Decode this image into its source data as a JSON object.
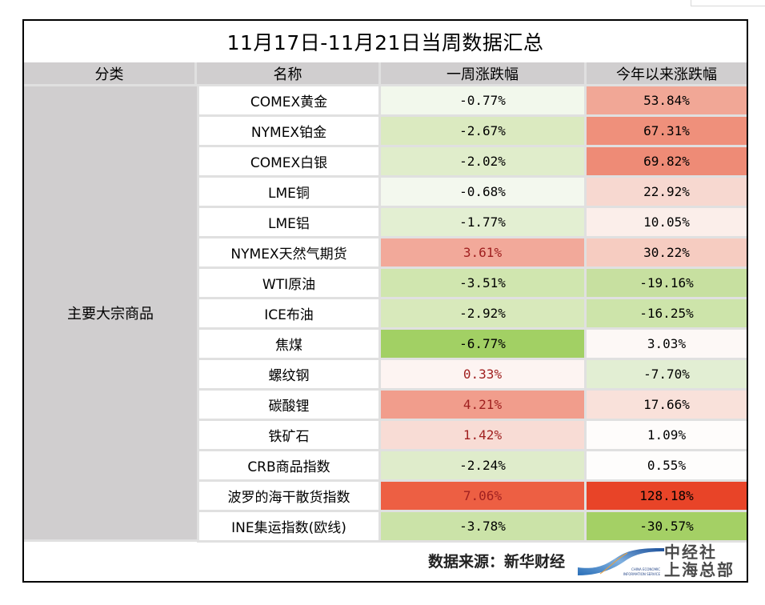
{
  "title": "11月17日-11月21日当周数据汇总",
  "headers": {
    "category": "分类",
    "name": "名称",
    "weekly": "一周涨跌幅",
    "ytd": "今年以来涨跌幅"
  },
  "category_label": "主要大宗商品",
  "rows": [
    {
      "name": "COMEX黄金",
      "weekly": "-0.77%",
      "ytd": "53.84%",
      "weekly_color": "#f2f8ec",
      "ytd_color": "#f1a796",
      "weekly_positive": false
    },
    {
      "name": "NYMEX铂金",
      "weekly": "-2.67%",
      "ytd": "67.31%",
      "weekly_color": "#dbeac0",
      "ytd_color": "#ef907b",
      "weekly_positive": false
    },
    {
      "name": "COMEX白银",
      "weekly": "-2.02%",
      "ytd": "69.82%",
      "weekly_color": "#e0edcb",
      "ytd_color": "#ee8b76",
      "weekly_positive": false
    },
    {
      "name": "LME铜",
      "weekly": "-0.68%",
      "ytd": "22.92%",
      "weekly_color": "#f3f8ee",
      "ytd_color": "#f7d8d0",
      "weekly_positive": false
    },
    {
      "name": "LME铝",
      "weekly": "-1.77%",
      "ytd": "10.05%",
      "weekly_color": "#e3efd2",
      "ytd_color": "#fbeeea",
      "weekly_positive": false
    },
    {
      "name": "NYMEX天然气期货",
      "weekly": "3.61%",
      "ytd": "30.22%",
      "weekly_color": "#f2a99a",
      "ytd_color": "#f6ccc1",
      "weekly_positive": true
    },
    {
      "name": "WTI原油",
      "weekly": "-3.51%",
      "ytd": "-19.16%",
      "weekly_color": "#d0e6af",
      "ytd_color": "#c7e0a0",
      "weekly_positive": false
    },
    {
      "name": "ICE布油",
      "weekly": "-2.92%",
      "ytd": "-16.25%",
      "weekly_color": "#d8e9bb",
      "ytd_color": "#cde4aa",
      "weekly_positive": false
    },
    {
      "name": "焦煤",
      "weekly": "-6.77%",
      "ytd": "3.03%",
      "weekly_color": "#a2d064",
      "ytd_color": "#fdf8f6",
      "weekly_positive": false
    },
    {
      "name": "螺纹钢",
      "weekly": "0.33%",
      "ytd": "-7.70%",
      "weekly_color": "#fdf4f2",
      "ytd_color": "#e2eed3",
      "weekly_positive": true
    },
    {
      "name": "碳酸锂",
      "weekly": "4.21%",
      "ytd": "17.66%",
      "weekly_color": "#f19d8c",
      "ytd_color": "#f9e1da",
      "weekly_positive": true
    },
    {
      "name": "铁矿石",
      "weekly": "1.42%",
      "ytd": "1.09%",
      "weekly_color": "#f8dcd5",
      "ytd_color": "#fefcfb",
      "weekly_positive": true
    },
    {
      "name": "CRB商品指数",
      "weekly": "-2.24%",
      "ytd": "0.55%",
      "weekly_color": "#dfeccb",
      "ytd_color": "#fefdfc",
      "weekly_positive": false
    },
    {
      "name": "波罗的海干散货指数",
      "weekly": "7.06%",
      "ytd": "128.18%",
      "weekly_color": "#ed5f43",
      "ytd_color": "#e84428",
      "weekly_positive": true
    },
    {
      "name": "INE集运指数(欧线)",
      "weekly": "-3.78%",
      "ytd": "-30.57%",
      "weekly_color": "#cbe3a8",
      "ytd_color": "#a4d065",
      "weekly_positive": false
    }
  ],
  "footer": {
    "source": "数据来源：新华财经",
    "logo_line1": "中经社",
    "logo_line2": "上海总部",
    "logo_small_line1": "CHINA ECONOMIC",
    "logo_small_line2": "INFORMATION SERVICE"
  }
}
